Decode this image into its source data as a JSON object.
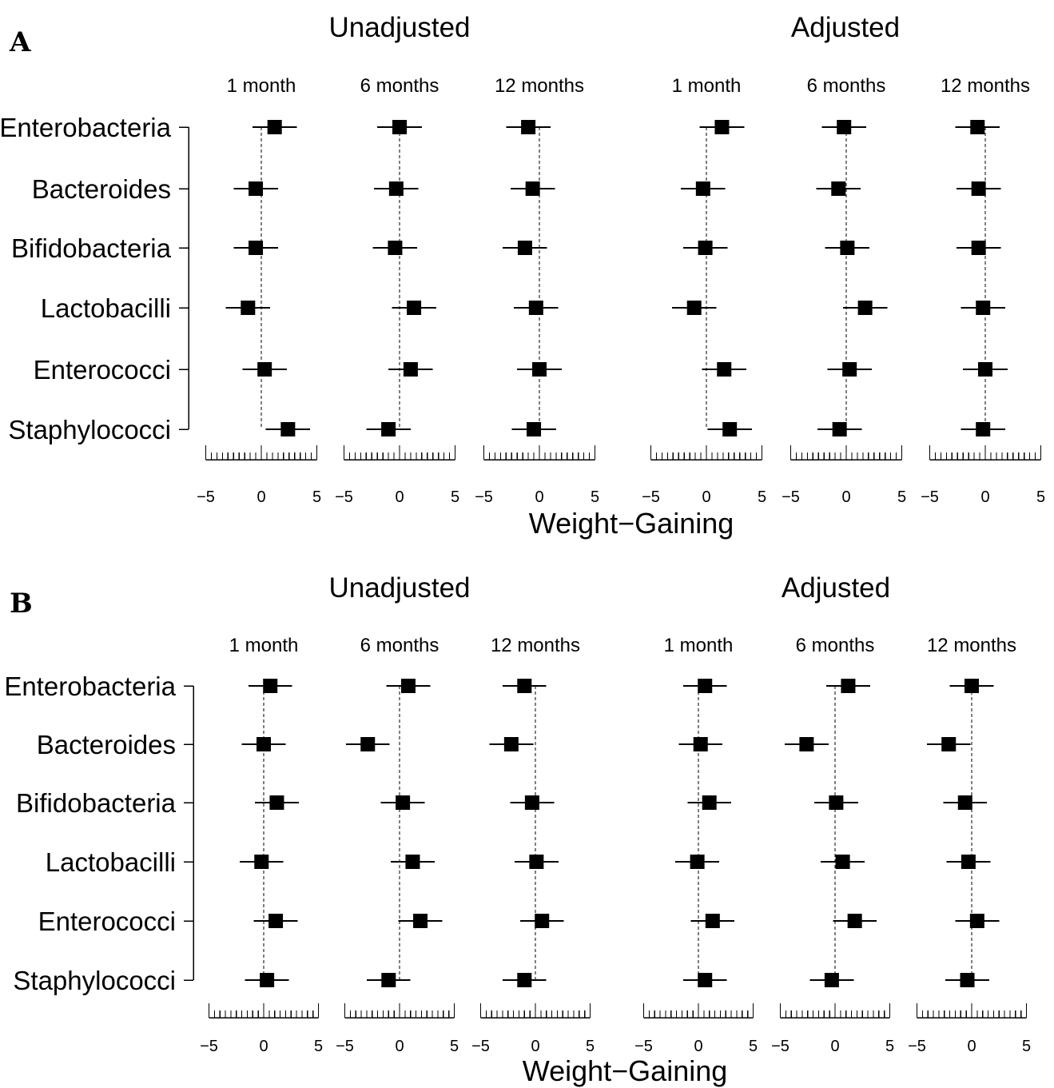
{
  "chart_data": [
    {
      "panel": "A",
      "type": "forest",
      "xlabel": "Weight−Gaining",
      "rows": [
        "Enterobacteria",
        "Bacteroides",
        "Bifidobacteria",
        "Lactobacilli",
        "Enterococci",
        "Staphylococci"
      ],
      "xlim": [
        -5,
        5
      ],
      "xticks": [
        -5,
        0,
        5
      ],
      "groups": [
        {
          "title": "Unadjusted",
          "facets": [
            {
              "title": "1 month",
              "estimates": [
                1.2,
                -0.5,
                -0.5,
                -1.2,
                0.3,
                2.4
              ],
              "ci_lower": [
                -0.8,
                -2.5,
                -2.5,
                -3.2,
                -1.7,
                0.4
              ],
              "ci_upper": [
                3.2,
                1.5,
                1.5,
                0.8,
                2.3,
                4.4
              ]
            },
            {
              "title": "6 months",
              "estimates": [
                0.0,
                -0.3,
                -0.4,
                1.3,
                1.0,
                -1.0
              ],
              "ci_lower": [
                -2.0,
                -2.3,
                -2.4,
                -0.7,
                -1.0,
                -3.0
              ],
              "ci_upper": [
                2.0,
                1.7,
                1.6,
                3.3,
                3.0,
                1.0
              ]
            },
            {
              "title": "12 months",
              "estimates": [
                -1.0,
                -0.6,
                -1.3,
                -0.3,
                0.0,
                -0.5
              ],
              "ci_lower": [
                -3.0,
                -2.6,
                -3.3,
                -2.3,
                -2.0,
                -2.5
              ],
              "ci_upper": [
                1.0,
                1.4,
                0.7,
                1.7,
                2.0,
                1.5
              ]
            }
          ]
        },
        {
          "title": "Adjusted",
          "facets": [
            {
              "title": "1 month",
              "estimates": [
                1.4,
                -0.3,
                -0.1,
                -1.1,
                1.6,
                2.1
              ],
              "ci_lower": [
                -0.6,
                -2.3,
                -2.1,
                -3.1,
                -0.4,
                0.1
              ],
              "ci_upper": [
                3.4,
                1.7,
                1.9,
                0.9,
                3.6,
                4.1
              ]
            },
            {
              "title": "6 months",
              "estimates": [
                -0.2,
                -0.7,
                0.1,
                1.7,
                0.3,
                -0.6
              ],
              "ci_lower": [
                -2.2,
                -2.7,
                -1.9,
                -0.3,
                -1.7,
                -2.6
              ],
              "ci_upper": [
                1.8,
                1.3,
                2.1,
                3.7,
                2.3,
                1.4
              ]
            },
            {
              "title": "12 months",
              "estimates": [
                -0.7,
                -0.6,
                -0.6,
                -0.2,
                0.0,
                -0.2
              ],
              "ci_lower": [
                -2.7,
                -2.6,
                -2.6,
                -2.2,
                -2.0,
                -2.2
              ],
              "ci_upper": [
                1.3,
                1.4,
                1.4,
                1.8,
                2.0,
                1.8
              ]
            }
          ]
        }
      ]
    },
    {
      "panel": "B",
      "type": "forest",
      "xlabel": "Weight−Gaining",
      "rows": [
        "Enterobacteria",
        "Bacteroides",
        "Bifidobacteria",
        "Lactobacilli",
        "Enterococci",
        "Staphylococci"
      ],
      "xlim": [
        -5,
        5
      ],
      "xticks": [
        -5,
        0,
        5
      ],
      "groups": [
        {
          "title": "Unadjusted",
          "facets": [
            {
              "title": "1 month",
              "estimates": [
                0.6,
                0.0,
                1.2,
                -0.2,
                1.1,
                0.3
              ],
              "ci_lower": [
                -1.4,
                -2.0,
                -0.8,
                -2.2,
                -0.9,
                -1.7
              ],
              "ci_upper": [
                2.6,
                2.0,
                3.2,
                1.8,
                3.1,
                2.3
              ]
            },
            {
              "title": "6 months",
              "estimates": [
                0.8,
                -2.9,
                0.3,
                1.2,
                1.9,
                -1.0
              ],
              "ci_lower": [
                -1.2,
                -4.9,
                -1.7,
                -0.8,
                -0.1,
                -3.0
              ],
              "ci_upper": [
                2.8,
                -0.9,
                2.3,
                3.2,
                3.9,
                1.0
              ]
            },
            {
              "title": "12 months",
              "estimates": [
                -1.0,
                -2.2,
                -0.3,
                0.1,
                0.6,
                -1.0
              ],
              "ci_lower": [
                -3.0,
                -4.2,
                -2.3,
                -1.9,
                -1.4,
                -3.0
              ],
              "ci_upper": [
                1.0,
                -0.2,
                1.7,
                2.1,
                2.6,
                1.0
              ]
            }
          ]
        },
        {
          "title": "Adjusted",
          "facets": [
            {
              "title": "1 month",
              "estimates": [
                0.6,
                0.2,
                1.0,
                -0.1,
                1.3,
                0.6
              ],
              "ci_lower": [
                -1.4,
                -1.8,
                -1.0,
                -2.1,
                -0.7,
                -1.4
              ],
              "ci_upper": [
                2.6,
                2.2,
                3.0,
                1.9,
                3.3,
                2.6
              ]
            },
            {
              "title": "6 months",
              "estimates": [
                1.2,
                -2.6,
                0.1,
                0.7,
                1.8,
                -0.3
              ],
              "ci_lower": [
                -0.8,
                -4.6,
                -1.9,
                -1.3,
                -0.2,
                -2.3
              ],
              "ci_upper": [
                3.2,
                -0.6,
                2.1,
                2.7,
                3.8,
                1.7
              ]
            },
            {
              "title": "12 months",
              "estimates": [
                0.0,
                -2.1,
                -0.6,
                -0.3,
                0.5,
                -0.4
              ],
              "ci_lower": [
                -2.0,
                -4.1,
                -2.6,
                -2.3,
                -1.5,
                -2.4
              ],
              "ci_upper": [
                2.0,
                -0.1,
                1.4,
                1.7,
                2.5,
                1.6
              ]
            }
          ]
        }
      ]
    }
  ]
}
